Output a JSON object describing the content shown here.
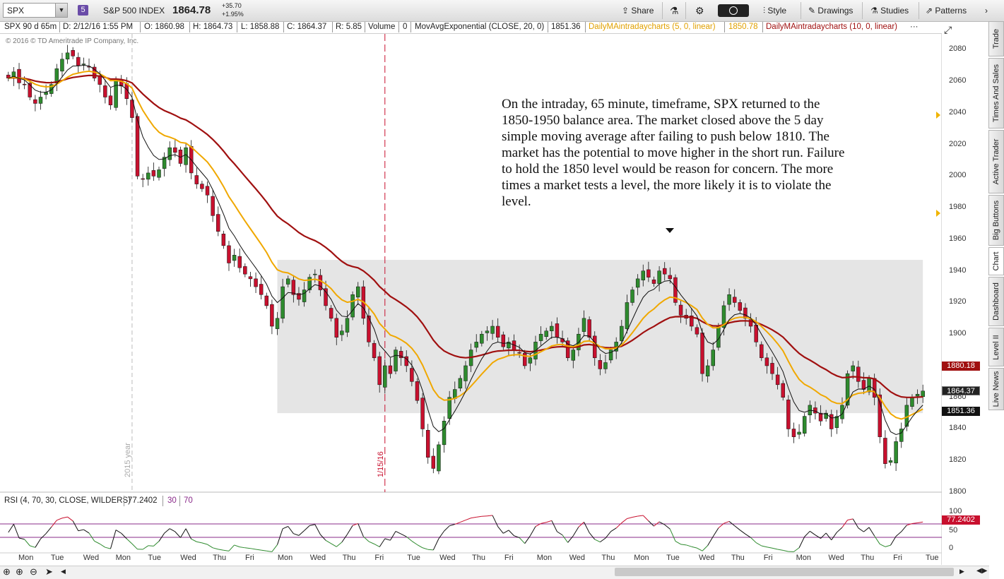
{
  "toolbar": {
    "symbol": "SPX",
    "badge": "5",
    "index_name": "S&P 500 INDEX",
    "last_price": "1864.78",
    "change_abs": "+35.70",
    "change_pct": "+1.95%",
    "share_label": "Share",
    "style_label": "Style",
    "drawings_label": "Drawings",
    "studies_label": "Studies",
    "patterns_label": "Patterns"
  },
  "infobar": {
    "symbol_period": "SPX 90 d 65m",
    "date": "D: 2/12/16 1:55 PM",
    "open": "O: 1860.98",
    "high": "H: 1864.73",
    "low": "L: 1858.88",
    "close": "C: 1864.37",
    "range": "R: 5.85",
    "volume_label": "Volume",
    "volume_value": "0",
    "ema_label": "MovAvgExponential (CLOSE, 20, 0)",
    "ema_value": "1851.36",
    "dma5_label": "DailyMAintradaycharts (5, 0, linear)",
    "dma5_value": "1850.78",
    "dma10_label": "DailyMAintradaycharts (10, 0, linear)",
    "more": "···"
  },
  "copyright": "© 2016 © TD Ameritrade IP Company, Inc.",
  "annotation": "On the intraday, 65 minute, timeframe, SPX returned to the 1850-1950 balance area.  The market closed above the 5 day simple moving average after failing to push below 1810.  The market has the potential to move higher in the short run.  Failure to hold the 1850 level would be reason for concern.  The more times a market tests a level, the more likely it is to violate the level.",
  "colors": {
    "up_candle": "#2e8b2e",
    "down_candle": "#c8102e",
    "ema20": "#111111",
    "dma5": "#f0a800",
    "dma10": "#a01010",
    "balance_zone": "#e5e5e5",
    "rsi_line": "#111111",
    "rsi_band": "#8a2b8a"
  },
  "side_tabs": [
    "Trade",
    "Times And Sales",
    "Active Trader",
    "Big Buttons",
    "Chart",
    "Dashboard",
    "Level II",
    "Live News"
  ],
  "rsi": {
    "label": "RSI (4, 70, 30, CLOSE, WILDERS)",
    "value": "77.2402",
    "over_sold": "30",
    "over_bought": "70",
    "axis_top": "100",
    "axis_mid": "50",
    "axis_bottom": "0"
  },
  "chart_data": {
    "type": "candlestick",
    "ylim": [
      1800,
      2090
    ],
    "yticks": [
      1800,
      1820,
      1840,
      1860,
      1880,
      1900,
      1920,
      1940,
      1960,
      1980,
      2000,
      2020,
      2040,
      2060,
      2080
    ],
    "xlabels": [
      "Mon",
      "Tue",
      "Wed",
      "Mon",
      "Tue",
      "Wed",
      "Thu",
      "Fri",
      "Mon",
      "Wed",
      "Thu",
      "Fri",
      "Tue",
      "Wed",
      "Thu",
      "Fri",
      "Mon",
      "Wed",
      "Thu",
      "Mon",
      "Tue",
      "Wed",
      "Thu",
      "Fri",
      "Mon",
      "Wed",
      "Thu",
      "Fri",
      "Tue"
    ],
    "vertical_markers": [
      {
        "label": "2015 year"
      },
      {
        "label": "1/15/16"
      }
    ],
    "balance_area": [
      1850,
      1947
    ],
    "price_tags": {
      "dma10": "1880.18",
      "last": "1864.37",
      "ema20": "1851.36"
    },
    "closes": [
      2062,
      2066,
      2059,
      2058,
      2050,
      2046,
      2050,
      2053,
      2058,
      2068,
      2074,
      2078,
      2076,
      2070,
      2071,
      2069,
      2062,
      2058,
      2050,
      2045,
      2061,
      2057,
      2049,
      2037,
      2000,
      1998,
      2002,
      2000,
      2004,
      2012,
      2018,
      2015,
      2008,
      2018,
      2002,
      1995,
      1992,
      1988,
      1975,
      1965,
      1956,
      1945,
      1950,
      1942,
      1938,
      1935,
      1930,
      1925,
      1918,
      1905,
      1910,
      1930,
      1935,
      1925,
      1922,
      1928,
      1936,
      1938,
      1928,
      1918,
      1910,
      1898,
      1902,
      1910,
      1925,
      1930,
      1910,
      1895,
      1885,
      1868,
      1880,
      1875,
      1890,
      1885,
      1880,
      1870,
      1858,
      1840,
      1822,
      1815,
      1830,
      1845,
      1860,
      1865,
      1872,
      1880,
      1890,
      1895,
      1900,
      1902,
      1905,
      1898,
      1892,
      1895,
      1890,
      1888,
      1880,
      1885,
      1895,
      1900,
      1902,
      1905,
      1898,
      1895,
      1885,
      1890,
      1900,
      1910,
      1898,
      1885,
      1878,
      1882,
      1890,
      1895,
      1905,
      1920,
      1928,
      1935,
      1940,
      1936,
      1932,
      1940,
      1938,
      1935,
      1920,
      1912,
      1910,
      1905,
      1900,
      1875,
      1880,
      1890,
      1905,
      1918,
      1925,
      1920,
      1915,
      1910,
      1905,
      1895,
      1885,
      1880,
      1875,
      1868,
      1860,
      1840,
      1835,
      1838,
      1848,
      1855,
      1850,
      1845,
      1850,
      1840,
      1848,
      1855,
      1875,
      1880,
      1870,
      1865,
      1872,
      1860,
      1835,
      1818,
      1820,
      1832,
      1840,
      1855,
      1860,
      1862,
      1864
    ]
  }
}
